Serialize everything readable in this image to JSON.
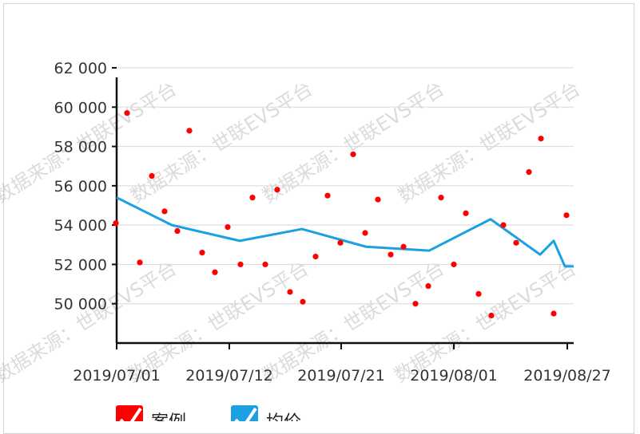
{
  "chart_data": {
    "type": "scatter+line",
    "ylim": [
      48000,
      62000
    ],
    "y_ticks": [
      "62 000",
      "60 000",
      "58 000",
      "56 000",
      "54 000",
      "52 000",
      "50 000"
    ],
    "y_tick_values": [
      62000,
      60000,
      58000,
      56000,
      54000,
      52000,
      50000
    ],
    "x_ticks": [
      "2019/07/01",
      "2019/07/12",
      "2019/07/21",
      "2019/08/01",
      "2019/08/27"
    ],
    "grid": true,
    "legend_placement": "bottom-left",
    "series": [
      {
        "name": "案例",
        "type": "scatter",
        "color": "#ff0000",
        "y": [
          54100,
          59700,
          52100,
          56500,
          54700,
          53700,
          58800,
          52600,
          51600,
          53900,
          52000,
          55400,
          52000,
          55800,
          50600,
          50100,
          52400,
          55500,
          53100,
          57600,
          53600,
          55300,
          52500,
          52900,
          50000,
          50900,
          55400,
          52000,
          54600,
          50500,
          49400,
          54000,
          53100,
          56700,
          58400,
          49500,
          54500
        ]
      },
      {
        "name": "均价",
        "type": "line",
        "color": "#1ba1e2",
        "y": [
          55400,
          54000,
          53200,
          53800,
          52900,
          52700,
          54300,
          52500,
          53200,
          51900,
          51900
        ]
      }
    ]
  },
  "watermark": "数据来源：世联EVS平台",
  "legend": [
    {
      "label": "案例",
      "color": "#ff0000"
    },
    {
      "label": "均价",
      "color": "#1ba1e2"
    }
  ]
}
